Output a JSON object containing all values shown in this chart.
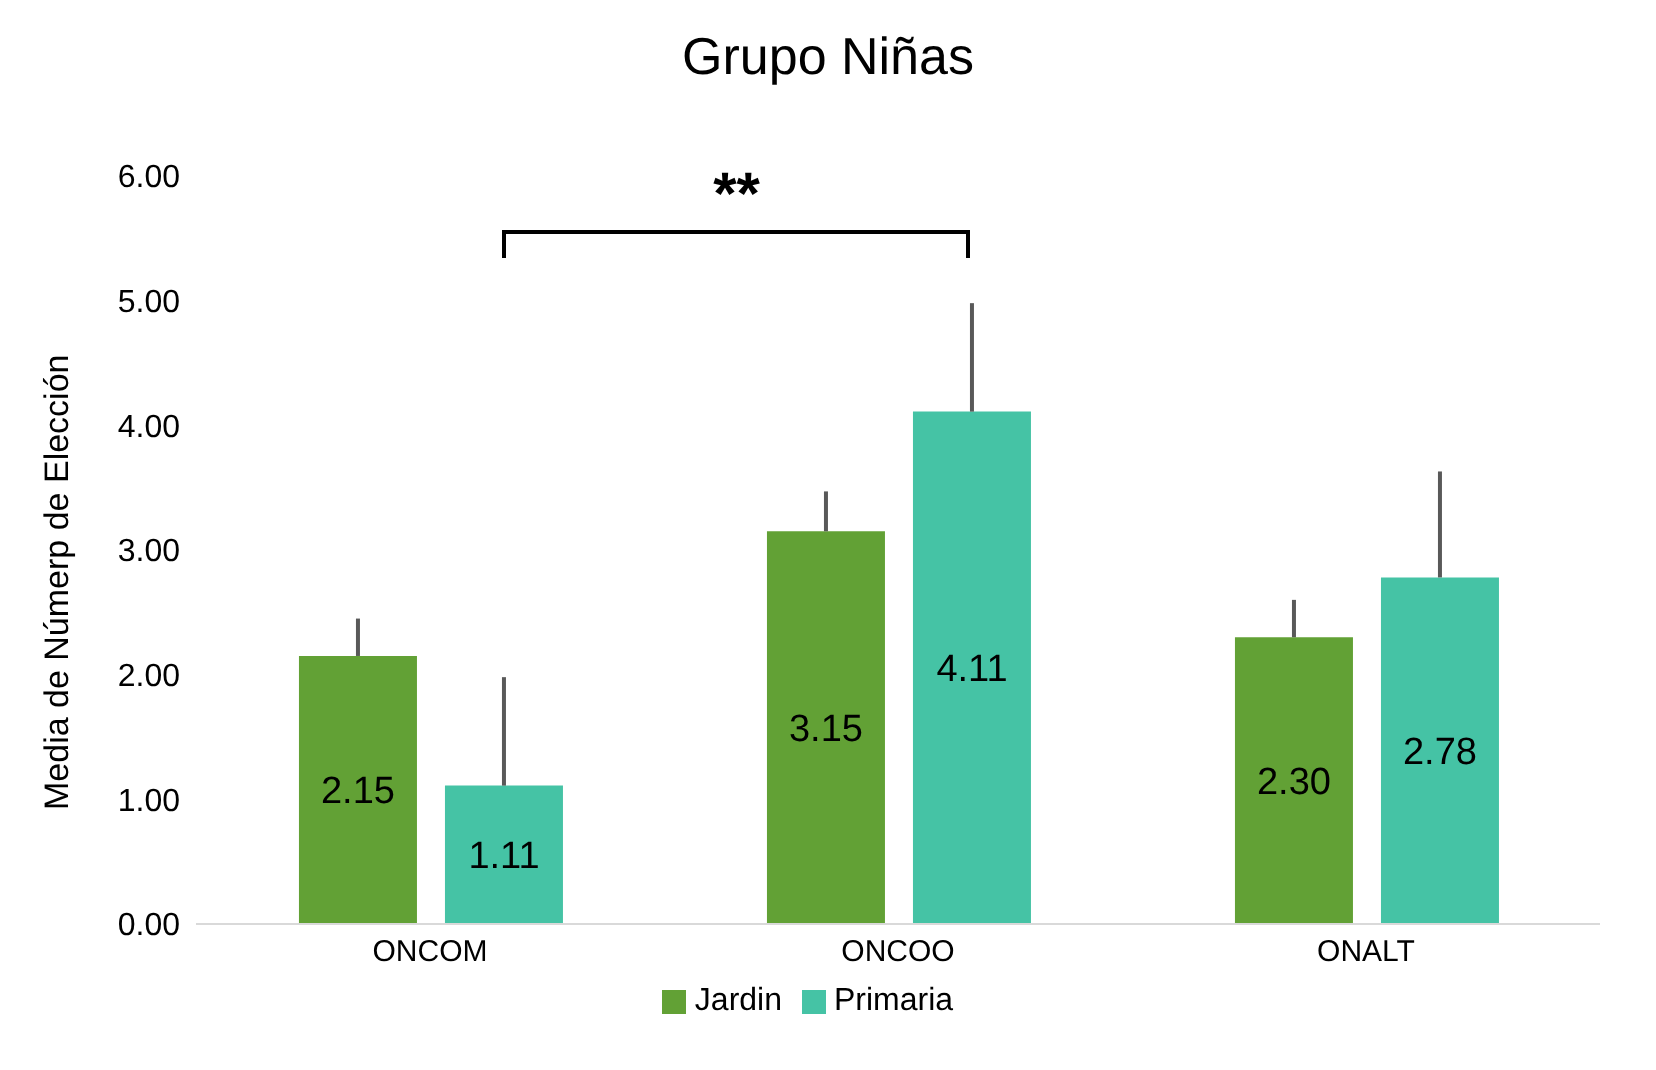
{
  "chart_data": {
    "type": "bar",
    "title": "Grupo Niñas",
    "ylabel": "Media de Númerp de Elección",
    "categories": [
      "ONCOM",
      "ONCOO",
      "ONALT"
    ],
    "series": [
      {
        "name": "Jardin",
        "color": "#62a135",
        "values": [
          2.15,
          3.15,
          2.3
        ],
        "value_labels": [
          "2.15",
          "3.15",
          "2.30"
        ],
        "errors": [
          [
            2.15,
            2.45
          ],
          [
            3.15,
            3.47
          ],
          [
            2.3,
            2.6
          ]
        ]
      },
      {
        "name": "Primaria",
        "color": "#45c3a5",
        "values": [
          1.11,
          4.11,
          2.78
        ],
        "value_labels": [
          "1.11",
          "4.11",
          "2.78"
        ],
        "errors": [
          [
            1.11,
            1.98
          ],
          [
            4.11,
            4.98
          ],
          [
            2.78,
            3.63
          ]
        ]
      }
    ],
    "ylim": [
      0,
      6
    ],
    "yticks": [
      {
        "value": 0,
        "label": "0.00"
      },
      {
        "value": 1,
        "label": "1.00"
      },
      {
        "value": 2,
        "label": "2.00"
      },
      {
        "value": 3,
        "label": "3.00"
      },
      {
        "value": 4,
        "label": "4.00"
      },
      {
        "value": 5,
        "label": "5.00"
      },
      {
        "value": 6,
        "label": "6.00"
      }
    ],
    "annotations": [
      "**"
    ],
    "grid": false,
    "legend": "bottom"
  }
}
